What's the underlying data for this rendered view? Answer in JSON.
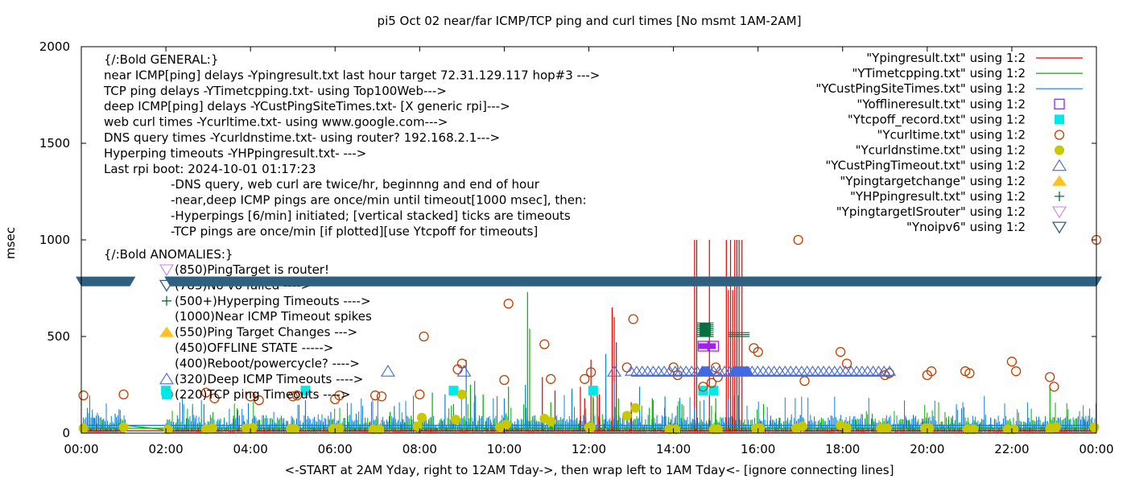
{
  "chart_data": {
    "type": "line",
    "title": "pi5 Oct 02  near/far ICMP/TCP ping and curl times [No msmt 1AM-2AM]",
    "xlabel": "<-START at 2AM Yday, right to 12AM Tday->, then wrap left to 1AM Tday<- [ignore connecting lines]",
    "ylabel": "msec",
    "xlim": [
      0,
      24
    ],
    "ylim": [
      0,
      2000
    ],
    "x_ticks": [
      0,
      2,
      4,
      6,
      8,
      10,
      12,
      14,
      16,
      18,
      20,
      22,
      24
    ],
    "x_tick_labels": [
      "00:00",
      "02:00",
      "04:00",
      "06:00",
      "08:00",
      "10:00",
      "12:00",
      "14:00",
      "16:00",
      "18:00",
      "20:00",
      "22:00",
      "00:00"
    ],
    "y_ticks": [
      0,
      500,
      1000,
      1500,
      2000
    ],
    "y_tick_labels": [
      "0",
      "500",
      "1000",
      "1500",
      "2000"
    ],
    "grid": false,
    "legend_position": "top-right",
    "colors": {
      "ping": "#e00000",
      "tcp": "#00b000",
      "cust": "#1080e0",
      "offline": "#a020f0",
      "tcpoff": "#00e8e8",
      "curl": "#c04000",
      "dns": "#c8c800",
      "custTimeout": "#4169e1",
      "targetchange": "#ffc020",
      "hp": "#007040",
      "router": "#c080ff",
      "noipv6": "#306080"
    },
    "series": [
      {
        "name": "\"Ypingresult.txt\" using 1:2",
        "key": "ping",
        "style": "line",
        "baseline": 12,
        "spikes": [
          [
            10.9,
            290
          ],
          [
            11.2,
            220
          ],
          [
            11.8,
            240
          ],
          [
            11.9,
            180
          ],
          [
            12.05,
            380
          ],
          [
            12.2,
            240
          ],
          [
            12.25,
            200
          ],
          [
            12.55,
            650
          ],
          [
            12.6,
            600
          ],
          [
            12.65,
            470
          ],
          [
            13.0,
            160
          ],
          [
            14.5,
            1000
          ],
          [
            14.55,
            1000
          ],
          [
            14.85,
            1000
          ],
          [
            15.25,
            1000
          ],
          [
            15.35,
            1000
          ],
          [
            15.45,
            1000
          ],
          [
            15.5,
            1000
          ],
          [
            15.55,
            1000
          ],
          [
            15.62,
            1000
          ],
          [
            15.3,
            740
          ],
          [
            15.4,
            740
          ]
        ]
      },
      {
        "name": "\"YTimetcpping.txt\" using 1:2",
        "key": "tcp",
        "style": "line",
        "baseline": 25,
        "spikes": [
          [
            0.5,
            70
          ],
          [
            0.9,
            50
          ],
          [
            2.5,
            80
          ],
          [
            3.6,
            90
          ],
          [
            4.2,
            70
          ],
          [
            5.0,
            80
          ],
          [
            6.3,
            90
          ],
          [
            7.3,
            110
          ],
          [
            7.8,
            90
          ],
          [
            8.3,
            210
          ],
          [
            8.8,
            150
          ],
          [
            9.2,
            250
          ],
          [
            9.5,
            200
          ],
          [
            10.1,
            240
          ],
          [
            10.55,
            730
          ],
          [
            10.6,
            540
          ],
          [
            11.1,
            160
          ],
          [
            11.6,
            220
          ],
          [
            12.1,
            190
          ],
          [
            12.4,
            230
          ],
          [
            12.7,
            180
          ],
          [
            13.5,
            180
          ],
          [
            14.2,
            150
          ],
          [
            15.0,
            180
          ],
          [
            15.5,
            200
          ],
          [
            16.5,
            80
          ],
          [
            17.5,
            80
          ],
          [
            18.3,
            70
          ],
          [
            19.5,
            80
          ],
          [
            20.5,
            70
          ],
          [
            21.5,
            70
          ],
          [
            22.9,
            230
          ],
          [
            23.8,
            70
          ]
        ]
      },
      {
        "name": "\"YCustPingSiteTimes.txt\" using 1:2",
        "key": "cust",
        "style": "line",
        "baseline": 40,
        "spikes": [
          [
            0.3,
            80
          ],
          [
            0.8,
            100
          ],
          [
            2.9,
            150
          ],
          [
            3.7,
            120
          ],
          [
            4.1,
            90
          ],
          [
            5.3,
            170
          ],
          [
            5.9,
            110
          ],
          [
            6.5,
            100
          ],
          [
            7.4,
            140
          ],
          [
            8.6,
            200
          ],
          [
            9.1,
            380
          ],
          [
            9.3,
            270
          ],
          [
            10.0,
            180
          ],
          [
            10.5,
            250
          ],
          [
            11.6,
            230
          ],
          [
            12.4,
            410
          ],
          [
            12.6,
            270
          ],
          [
            13.2,
            240
          ],
          [
            13.8,
            190
          ],
          [
            14.5,
            130
          ],
          [
            15.3,
            180
          ],
          [
            16.3,
            90
          ],
          [
            17.0,
            90
          ],
          [
            18.7,
            100
          ],
          [
            19.7,
            80
          ],
          [
            20.6,
            90
          ],
          [
            21.5,
            80
          ],
          [
            22.4,
            80
          ],
          [
            23.7,
            80
          ]
        ]
      },
      {
        "name": "\"Yofflineresult.txt\" using 1:2",
        "key": "offline",
        "style": "open-square",
        "points": [
          [
            14.7,
            450
          ],
          [
            14.95,
            450
          ]
        ]
      },
      {
        "name": "\"Ytcpoff_record.txt\" using 1:2",
        "key": "tcpoff",
        "style": "filled-square",
        "points": [
          [
            2.0,
            220
          ],
          [
            5.3,
            220
          ],
          [
            8.8,
            220
          ],
          [
            12.1,
            220
          ],
          [
            14.7,
            220
          ],
          [
            14.95,
            220
          ]
        ]
      },
      {
        "name": "\"Ycurltime.txt\" using 1:2",
        "key": "curl",
        "style": "open-circle",
        "points": [
          [
            0.05,
            195
          ],
          [
            1.0,
            200
          ],
          [
            2.05,
            200
          ],
          [
            2.95,
            210
          ],
          [
            3.15,
            180
          ],
          [
            4.0,
            190
          ],
          [
            4.2,
            170
          ],
          [
            5.0,
            190
          ],
          [
            5.1,
            195
          ],
          [
            6.0,
            175
          ],
          [
            6.1,
            195
          ],
          [
            6.95,
            195
          ],
          [
            7.1,
            190
          ],
          [
            8.0,
            200
          ],
          [
            8.1,
            500
          ],
          [
            8.9,
            330
          ],
          [
            9.0,
            360
          ],
          [
            10.0,
            275
          ],
          [
            10.1,
            670
          ],
          [
            10.95,
            460
          ],
          [
            11.1,
            280
          ],
          [
            11.9,
            280
          ],
          [
            12.05,
            315
          ],
          [
            12.9,
            340
          ],
          [
            13.05,
            590
          ],
          [
            14.0,
            340
          ],
          [
            14.1,
            300
          ],
          [
            14.7,
            240
          ],
          [
            14.9,
            260
          ],
          [
            15.0,
            340
          ],
          [
            15.05,
            290
          ],
          [
            15.9,
            440
          ],
          [
            16.0,
            420
          ],
          [
            16.95,
            1000
          ],
          [
            17.1,
            270
          ],
          [
            17.95,
            420
          ],
          [
            18.1,
            360
          ],
          [
            19.0,
            300
          ],
          [
            19.1,
            310
          ],
          [
            20.0,
            300
          ],
          [
            20.1,
            320
          ],
          [
            20.9,
            320
          ],
          [
            21.0,
            310
          ],
          [
            22.0,
            370
          ],
          [
            22.1,
            320
          ],
          [
            22.9,
            290
          ],
          [
            23.0,
            240
          ],
          [
            24.0,
            1000
          ]
        ]
      },
      {
        "name": "\"Ycurldnstime.txt\" using 1:2",
        "key": "dns",
        "style": "filled-circle",
        "points": [
          [
            0.05,
            25
          ],
          [
            1.0,
            30
          ],
          [
            2.05,
            20
          ],
          [
            2.95,
            20
          ],
          [
            3.1,
            25
          ],
          [
            3.9,
            25
          ],
          [
            4.05,
            28
          ],
          [
            4.95,
            22
          ],
          [
            5.05,
            22
          ],
          [
            5.95,
            22
          ],
          [
            6.1,
            25
          ],
          [
            6.9,
            20
          ],
          [
            7.05,
            20
          ],
          [
            7.95,
            35
          ],
          [
            8.05,
            80
          ],
          [
            8.85,
            70
          ],
          [
            9.0,
            200
          ],
          [
            9.9,
            30
          ],
          [
            10.05,
            45
          ],
          [
            10.95,
            75
          ],
          [
            11.1,
            60
          ],
          [
            12.0,
            30
          ],
          [
            12.05,
            30
          ],
          [
            12.9,
            90
          ],
          [
            13.1,
            130
          ],
          [
            13.9,
            20
          ],
          [
            14.05,
            20
          ],
          [
            14.95,
            20
          ],
          [
            15.05,
            20
          ],
          [
            15.95,
            25
          ],
          [
            16.05,
            25
          ],
          [
            16.9,
            25
          ],
          [
            17.05,
            35
          ],
          [
            17.95,
            40
          ],
          [
            18.1,
            25
          ],
          [
            18.9,
            25
          ],
          [
            19.05,
            25
          ],
          [
            19.95,
            25
          ],
          [
            20.05,
            25
          ],
          [
            20.95,
            20
          ],
          [
            21.1,
            20
          ],
          [
            21.9,
            20
          ],
          [
            22.05,
            20
          ],
          [
            22.9,
            25
          ],
          [
            23.05,
            30
          ],
          [
            23.95,
            30
          ]
        ]
      },
      {
        "name": "\"YCustPingTimeout.txt\" using 1:2",
        "key": "custTimeout",
        "style": "open-triangle-up",
        "points": [
          [
            7.25,
            320
          ],
          [
            9.05,
            320
          ],
          [
            12.6,
            320
          ]
        ],
        "range": [
          [
            13.0,
            19.2,
            320
          ]
        ],
        "dense_block": [
          [
            14.55,
            14.95,
            320
          ],
          [
            15.3,
            15.9,
            320
          ]
        ]
      },
      {
        "name": "\"Ypingtargetchange\" using 1:2",
        "key": "targetchange",
        "style": "filled-triangle-up",
        "points": []
      },
      {
        "name": "\"YHPpingresult.txt\" using 1:2",
        "key": "hp",
        "style": "plus",
        "points": [],
        "stack": [
          [
            14.55,
            14.95,
            500,
            570
          ],
          [
            15.3,
            15.8,
            500,
            520
          ]
        ]
      },
      {
        "name": "\"YpingtargetISrouter\" using 1:2",
        "key": "router",
        "style": "open-triangle-down",
        "points": []
      },
      {
        "name": "\"Ynoipv6\" using 1:2",
        "key": "noipv6",
        "style": "filled-triangle-down",
        "band": {
          "y": 785,
          "from": [
            [
              0,
              1.15
            ],
            [
              2.1,
              24
            ]
          ],
          "gap_at": 14.75
        }
      }
    ],
    "annotations": {
      "general_header": "{/:Bold GENERAL:}",
      "general_lines": [
        "near ICMP[ping] delays -Ypingresult.txt last hour target 72.31.129.117 hop#3 --->",
        "TCP ping delays -YTimetcpping.txt- using Top100Web--->",
        "deep ICMP[ping] delays -YCustPingSiteTimes.txt- [X generic rpi]--->",
        "web curl times -Ycurltime.txt- using www.google.com--->",
        "DNS query times -Ycurldnstime.txt- using router? 192.168.2.1--->",
        "Hyperping timeouts -YHPpingresult.txt- --->",
        "Last rpi boot: 2024-10-01 01:17:23"
      ],
      "notes": [
        "-DNS query, web curl are twice/hr, beginnng and end of hour",
        "-near,deep ICMP pings are once/min until timeout[1000 msec], then:",
        "  -Hyperpings [6/min] initiated; [vertical stacked] ticks are timeouts",
        "-TCP pings are once/min [if plotted][use Ytcpoff for timeouts]"
      ],
      "anomalies_header": "{/:Bold ANOMALIES:}",
      "anomalies": [
        {
          "key": "router",
          "text": "(850)PingTarget is router!"
        },
        {
          "key": "noipv6",
          "text": "(785)No v6 failed ---->"
        },
        {
          "key": "hp",
          "text": "(500+)Hyperping Timeouts ---->"
        },
        {
          "key": "",
          "text": "(1000)Near ICMP Timeout spikes"
        },
        {
          "key": "targetchange",
          "text": "(550)Ping Target Changes --->"
        },
        {
          "key": "",
          "text": "(450)OFFLINE STATE ----->"
        },
        {
          "key": "",
          "text": "(400)Reboot/powercycle? ---->"
        },
        {
          "key": "custTimeout",
          "text": "(320)Deep ICMP Timeouts ---->"
        },
        {
          "key": "tcpoff",
          "text": "(220)TCP ping Timeouts ---->"
        }
      ]
    }
  }
}
